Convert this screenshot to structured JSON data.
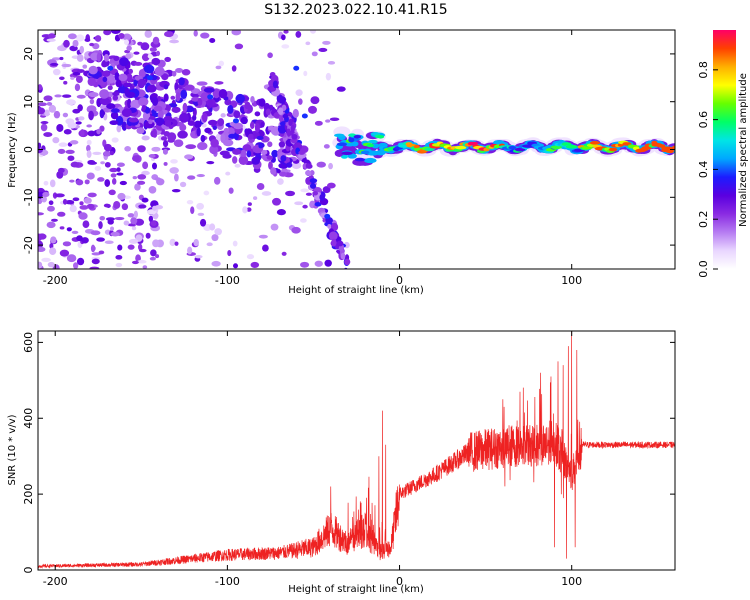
{
  "title": "S132.2023.022.10.41.R15",
  "chart_data": [
    {
      "type": "heatmap",
      "xlabel": "Height of straight line (km)",
      "ylabel": "Frequency (Hz)",
      "xlim": [
        -210,
        160
      ],
      "ylim": [
        -25,
        25
      ],
      "xticks": [
        -200,
        -100,
        0,
        100
      ],
      "yticks": [
        -20,
        -10,
        0,
        10,
        20
      ],
      "colorbar": {
        "label": "Normalized spectral amplitude",
        "range": [
          0,
          0.96
        ],
        "ticks": [
          0.0,
          0.2,
          0.4,
          0.6,
          0.8
        ],
        "colormap": [
          "#ffffff",
          "#e9d6ff",
          "#b67cf2",
          "#8a2be2",
          "#5a00e0",
          "#1c1cff",
          "#00a8ff",
          "#00e5e5",
          "#00ff66",
          "#66ff00",
          "#ffff00",
          "#ffb000",
          "#ff4000",
          "#ff0066"
        ]
      },
      "features": {
        "scatter_region": {
          "x": [
            -210,
            -30
          ],
          "freq_range": [
            -25,
            25
          ],
          "amplitude": [
            0.05,
            0.3
          ]
        },
        "dense_cluster": {
          "x": [
            -180,
            -60
          ],
          "freq_range": [
            -5,
            20
          ],
          "amplitude": [
            0.15,
            0.35
          ]
        },
        "diagonal_branch": {
          "x": [
            -75,
            -30
          ],
          "freq_start": 15,
          "freq_end": -25
        },
        "narrow_band": {
          "x": [
            -35,
            160
          ],
          "center_freq": 0.5,
          "peak_amplitude": 0.96
        }
      }
    },
    {
      "type": "line",
      "xlabel": "Height of straight line (km)",
      "ylabel": "SNR (10 * v/v)",
      "xlim": [
        -210,
        160
      ],
      "ylim": [
        0,
        630
      ],
      "xticks": [
        -200,
        -100,
        0,
        100
      ],
      "yticks": [
        0,
        200,
        400,
        600
      ],
      "color": "#ee2222",
      "envelope": [
        {
          "x": -210,
          "y": 10
        },
        {
          "x": -150,
          "y": 15
        },
        {
          "x": -130,
          "y": 25
        },
        {
          "x": -100,
          "y": 40
        },
        {
          "x": -70,
          "y": 45
        },
        {
          "x": -50,
          "y": 60
        },
        {
          "x": -40,
          "y": 110
        },
        {
          "x": -30,
          "y": 70
        },
        {
          "x": -20,
          "y": 110
        },
        {
          "x": -12,
          "y": 45
        },
        {
          "x": -5,
          "y": 60
        },
        {
          "x": 0,
          "y": 200
        },
        {
          "x": 20,
          "y": 250
        },
        {
          "x": 40,
          "y": 310
        },
        {
          "x": 60,
          "y": 325
        },
        {
          "x": 80,
          "y": 330
        },
        {
          "x": 90,
          "y": 340
        },
        {
          "x": 100,
          "y": 250
        },
        {
          "x": 106,
          "y": 330
        },
        {
          "x": 160,
          "y": 330
        }
      ],
      "spikes": [
        {
          "x": -40,
          "y": 220
        },
        {
          "x": -10,
          "y": 420
        },
        {
          "x": -12,
          "y": 300
        },
        {
          "x": -8,
          "y": 330
        },
        {
          "x": 70,
          "y": 470
        },
        {
          "x": 82,
          "y": 520
        },
        {
          "x": 88,
          "y": 510
        },
        {
          "x": 92,
          "y": 550
        },
        {
          "x": 95,
          "y": 540
        },
        {
          "x": 98,
          "y": 590
        },
        {
          "x": 100,
          "y": 630
        },
        {
          "x": 103,
          "y": 580
        },
        {
          "x": 90,
          "y": 60
        },
        {
          "x": 97,
          "y": 30
        },
        {
          "x": 102,
          "y": 60
        }
      ]
    }
  ]
}
